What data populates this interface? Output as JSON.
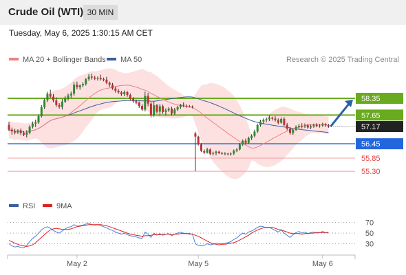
{
  "header": {
    "title": "Crude Oil (WTI)",
    "timeframe": "30 MIN"
  },
  "datetime": "Tuesday, May 6, 2025 1:30:15 AM CET",
  "legend": {
    "ma20_label": "MA 20 + Bollinger Bands",
    "ma50_label": "MA 50",
    "credit": "Research © 2025 Trading Central"
  },
  "rsi_legend": {
    "rsi_label": "RSI",
    "ma9_label": "9MA"
  },
  "colors": {
    "ma20": "#f08080",
    "ma50": "#3a5f9f",
    "bollinger": "#fde0e0",
    "green_line": "#6aaa1e",
    "blue_line": "#2266dd",
    "red_line": "#f0a0a0",
    "candle_up": "#2e8b2e",
    "candle_down": "#c03030",
    "arrow": "#2a5fa8",
    "current_price_tag": "#222222"
  },
  "chart_data": [
    {
      "type": "candlestick",
      "title": "Crude Oil (WTI)",
      "timeframe": "30 MIN",
      "x_ticks": [
        "May 2",
        "May 5",
        "May 6"
      ],
      "ylim": [
        54.7,
        59.5
      ],
      "current_price": 57.17,
      "levels": [
        {
          "value": 58.35,
          "label": "58.35",
          "kind": "resistance"
        },
        {
          "value": 57.65,
          "label": "57.65",
          "kind": "resistance"
        },
        {
          "value": 56.45,
          "label": "56.45",
          "kind": "pivot"
        },
        {
          "value": 55.85,
          "label": "55.85",
          "kind": "support"
        },
        {
          "value": 55.3,
          "label": "55.30",
          "kind": "support"
        }
      ],
      "series": [
        {
          "name": "MA 20 + Bollinger Bands"
        },
        {
          "name": "MA 50"
        }
      ],
      "candles": [
        [
          57.24,
          57.37,
          56.97,
          57.04
        ],
        [
          57.04,
          57.13,
          56.83,
          56.97
        ],
        [
          56.97,
          57.08,
          56.84,
          56.92
        ],
        [
          56.92,
          57.05,
          56.86,
          57.01
        ],
        [
          57.01,
          57.09,
          56.81,
          56.9
        ],
        [
          56.9,
          56.99,
          56.77,
          56.83
        ],
        [
          56.83,
          57.02,
          56.71,
          56.91
        ],
        [
          56.91,
          57.22,
          56.85,
          57.16
        ],
        [
          57.16,
          57.38,
          57.09,
          57.29
        ],
        [
          57.29,
          57.46,
          57.15,
          57.34
        ],
        [
          57.34,
          57.68,
          57.28,
          57.6
        ],
        [
          57.6,
          58.07,
          57.55,
          57.98
        ],
        [
          57.98,
          58.34,
          57.91,
          58.27
        ],
        [
          58.27,
          58.62,
          58.2,
          58.54
        ],
        [
          58.54,
          58.71,
          58.36,
          58.42
        ],
        [
          58.42,
          58.53,
          58.19,
          58.26
        ],
        [
          58.26,
          58.39,
          57.99,
          58.07
        ],
        [
          58.07,
          58.15,
          57.92,
          57.99
        ],
        [
          57.99,
          58.32,
          57.88,
          58.21
        ],
        [
          58.21,
          58.45,
          58.15,
          58.36
        ],
        [
          58.36,
          58.55,
          58.25,
          58.47
        ],
        [
          58.47,
          58.63,
          58.37,
          58.54
        ],
        [
          58.54,
          59.03,
          58.45,
          58.92
        ],
        [
          58.92,
          59.05,
          58.72,
          58.81
        ],
        [
          58.81,
          58.93,
          58.71,
          58.89
        ],
        [
          58.89,
          59.03,
          58.81,
          58.95
        ],
        [
          58.95,
          59.2,
          58.88,
          59.15
        ],
        [
          59.15,
          59.36,
          59.08,
          59.26
        ],
        [
          59.26,
          59.38,
          59.13,
          59.22
        ],
        [
          59.22,
          59.29,
          59.11,
          59.17
        ],
        [
          59.17,
          59.26,
          59.09,
          59.2
        ],
        [
          59.2,
          59.34,
          59.09,
          59.15
        ],
        [
          59.15,
          59.22,
          59.06,
          59.13
        ],
        [
          59.13,
          59.25,
          58.94,
          59.0
        ],
        [
          59.0,
          59.05,
          58.82,
          58.92
        ],
        [
          58.92,
          58.99,
          58.71,
          58.76
        ],
        [
          58.76,
          58.85,
          58.59,
          58.67
        ],
        [
          58.67,
          58.74,
          58.54,
          58.6
        ],
        [
          58.6,
          58.66,
          58.45,
          58.52
        ],
        [
          58.52,
          58.68,
          58.44,
          58.61
        ],
        [
          58.61,
          58.66,
          58.42,
          58.49
        ],
        [
          58.49,
          58.55,
          58.27,
          58.33
        ],
        [
          58.33,
          58.4,
          58.16,
          58.23
        ],
        [
          58.23,
          58.3,
          58.1,
          58.17
        ],
        [
          58.17,
          58.22,
          57.95,
          58.03
        ],
        [
          58.03,
          58.1,
          57.82,
          57.88
        ],
        [
          57.88,
          58.63,
          57.8,
          58.45
        ],
        [
          58.45,
          58.58,
          58.02,
          58.13
        ],
        [
          58.13,
          58.2,
          57.55,
          57.65
        ],
        [
          57.65,
          58.22,
          57.58,
          58.06
        ],
        [
          58.06,
          58.12,
          57.71,
          57.79
        ],
        [
          57.79,
          58.11,
          57.63,
          58.02
        ],
        [
          58.02,
          58.09,
          57.7,
          57.78
        ],
        [
          57.78,
          57.93,
          57.64,
          57.85
        ],
        [
          57.85,
          57.98,
          57.78,
          57.92
        ],
        [
          57.92,
          58.0,
          57.64,
          57.71
        ],
        [
          57.71,
          57.95,
          57.66,
          57.88
        ],
        [
          57.88,
          58.04,
          57.82,
          57.98
        ],
        [
          57.98,
          58.12,
          57.91,
          58.08
        ],
        [
          58.08,
          58.18,
          57.98,
          58.04
        ],
        [
          58.04,
          58.1,
          57.96,
          58.02
        ],
        [
          58.02,
          58.07,
          57.97,
          58.0
        ],
        [
          58.0,
          58.05,
          57.93,
          57.98
        ],
        [
          56.88,
          56.95,
          55.3,
          56.75
        ],
        [
          56.75,
          56.79,
          56.38,
          56.42
        ],
        [
          56.42,
          56.48,
          56.1,
          56.15
        ],
        [
          56.15,
          56.22,
          56.02,
          56.08
        ],
        [
          56.08,
          56.28,
          56.04,
          56.21
        ],
        [
          56.21,
          56.26,
          55.98,
          56.03
        ],
        [
          56.03,
          56.12,
          55.96,
          56.06
        ],
        [
          56.06,
          56.17,
          55.97,
          56.12
        ],
        [
          56.12,
          56.16,
          56.02,
          56.06
        ],
        [
          56.06,
          56.11,
          55.99,
          56.03
        ],
        [
          56.03,
          56.1,
          55.97,
          56.04
        ],
        [
          56.04,
          56.07,
          55.96,
          56.01
        ],
        [
          56.01,
          56.09,
          55.95,
          56.04
        ],
        [
          56.04,
          56.21,
          55.98,
          56.16
        ],
        [
          56.16,
          56.27,
          56.1,
          56.21
        ],
        [
          56.21,
          56.48,
          56.17,
          56.42
        ],
        [
          56.42,
          56.63,
          56.36,
          56.58
        ],
        [
          56.58,
          56.67,
          56.42,
          56.49
        ],
        [
          56.49,
          56.75,
          56.45,
          56.69
        ],
        [
          56.69,
          56.85,
          56.61,
          56.78
        ],
        [
          56.78,
          57.04,
          56.72,
          56.96
        ],
        [
          56.96,
          57.29,
          56.91,
          57.23
        ],
        [
          57.23,
          57.45,
          57.17,
          57.38
        ],
        [
          57.38,
          57.51,
          57.28,
          57.45
        ],
        [
          57.45,
          57.55,
          57.35,
          57.48
        ],
        [
          57.48,
          57.63,
          57.4,
          57.54
        ],
        [
          57.54,
          57.58,
          57.42,
          57.5
        ],
        [
          57.5,
          57.6,
          57.38,
          57.44
        ],
        [
          57.44,
          57.51,
          57.26,
          57.33
        ],
        [
          57.33,
          57.55,
          57.29,
          57.49
        ],
        [
          57.49,
          57.56,
          57.19,
          57.24
        ],
        [
          57.24,
          57.32,
          57.01,
          57.08
        ],
        [
          57.08,
          57.15,
          56.83,
          56.9
        ],
        [
          56.9,
          57.08,
          56.82,
          57.03
        ],
        [
          57.03,
          57.22,
          56.98,
          57.15
        ],
        [
          57.15,
          57.28,
          57.07,
          57.2
        ],
        [
          57.2,
          57.31,
          57.09,
          57.18
        ],
        [
          57.18,
          57.3,
          57.11,
          57.22
        ],
        [
          57.22,
          57.28,
          57.07,
          57.13
        ],
        [
          57.13,
          57.25,
          57.06,
          57.18
        ],
        [
          57.18,
          57.29,
          57.12,
          57.24
        ],
        [
          57.24,
          57.31,
          57.14,
          57.19
        ],
        [
          57.19,
          57.27,
          57.13,
          57.21
        ],
        [
          57.21,
          57.33,
          57.16,
          57.27
        ],
        [
          57.27,
          57.31,
          57.16,
          57.22
        ],
        [
          57.22,
          57.28,
          57.12,
          57.17
        ]
      ]
    },
    {
      "type": "line",
      "title": "RSI",
      "x_ticks": [
        "May 2",
        "May 5",
        "May 6"
      ],
      "y_ticks": [
        "70",
        "50",
        "30"
      ],
      "ylim": [
        10,
        85
      ],
      "series": [
        {
          "name": "RSI",
          "values": [
            30,
            26,
            24,
            25,
            23,
            22,
            27,
            34,
            40,
            44,
            50,
            56,
            60,
            62,
            59,
            55,
            52,
            50,
            54,
            58,
            61,
            62,
            66,
            63,
            64,
            65,
            67,
            68,
            66,
            65,
            66,
            64,
            62,
            60,
            57,
            55,
            52,
            50,
            48,
            50,
            47,
            45,
            44,
            43,
            41,
            40,
            52,
            48,
            42,
            50,
            46,
            49,
            46,
            48,
            49,
            45,
            48,
            50,
            52,
            50,
            49,
            48,
            48,
            30,
            27,
            26,
            27,
            30,
            28,
            29,
            31,
            30,
            30,
            31,
            32,
            34,
            38,
            41,
            46,
            50,
            48,
            52,
            54,
            57,
            61,
            63,
            62,
            60,
            61,
            58,
            55,
            52,
            56,
            50,
            46,
            42,
            47,
            51,
            53,
            50,
            52,
            49,
            51,
            52,
            50,
            51,
            53,
            51,
            50
          ]
        },
        {
          "name": "9MA",
          "values": [
            36,
            34,
            31,
            29,
            27,
            26,
            25,
            26,
            28,
            32,
            37,
            42,
            47,
            52,
            56,
            58,
            59,
            58,
            57,
            57,
            57,
            58,
            60,
            62,
            63,
            64,
            65,
            66,
            66,
            66,
            66,
            66,
            65,
            64,
            62,
            60,
            58,
            56,
            54,
            52,
            50,
            48,
            47,
            46,
            45,
            44,
            45,
            45,
            46,
            47,
            47,
            47,
            48,
            48,
            48,
            47,
            48,
            48,
            49,
            49,
            49,
            49,
            48,
            46,
            44,
            41,
            38,
            35,
            32,
            30,
            29,
            28,
            29,
            29,
            30,
            31,
            32,
            34,
            37,
            40,
            43,
            46,
            50,
            53,
            56,
            58,
            60,
            61,
            61,
            61,
            59,
            57,
            56,
            54,
            52,
            50,
            49,
            49,
            49,
            48,
            49,
            49,
            50,
            50,
            51,
            51,
            51,
            51,
            51
          ]
        }
      ]
    }
  ]
}
